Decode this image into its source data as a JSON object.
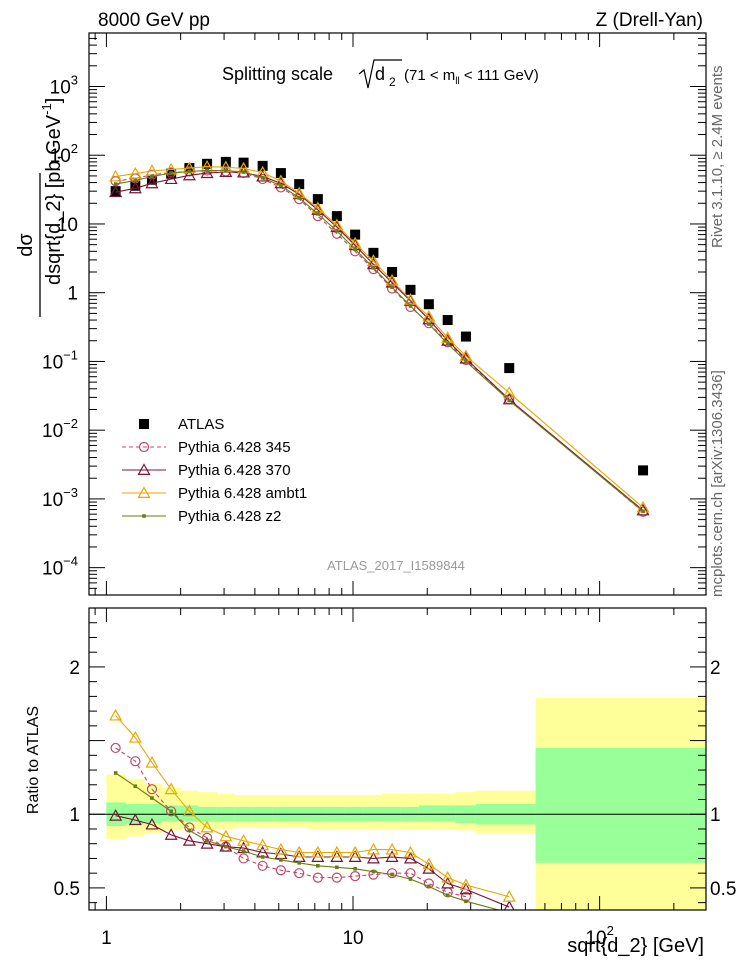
{
  "header": {
    "left": "8000 GeV pp",
    "right": "Z (Drell-Yan)"
  },
  "side_text": {
    "upper": "Rivet 3.1.10, ≥ 2.4M events",
    "lower": "mcplots.cern.ch [arXiv:1306.3436]"
  },
  "watermark": "ATLAS_2017_I1589844",
  "chart_data": [
    {
      "type": "scatter",
      "panel": "main",
      "title": "Splitting scale √d₂ (71 < mₗₗ < 111 GeV)",
      "title_main": "Splitting scale",
      "title_var": "d",
      "title_var_sub": "2",
      "title_range_pre": "(71 < m",
      "title_range_sub": "ll",
      "title_range_post": " < 111 GeV)",
      "ylabel": "dσ / dsqrt{d_2} [pb,GeV⁻¹]",
      "ylabel_num": "dσ",
      "ylabel_den": "dsqrt{d_2} [pb,GeV",
      "ylabel_exp": "-1",
      "ylabel_close": "]",
      "xlabel": "sqrt{d_2} [GeV]",
      "xscale": "log",
      "yscale": "log",
      "xlim": [
        0.85,
        270
      ],
      "ylim": [
        4e-05,
        6000
      ],
      "x_ticks": [
        {
          "value": 1,
          "label": "1"
        },
        {
          "value": 10,
          "label": "10"
        },
        {
          "value": 100,
          "label": "10",
          "exp": "2"
        }
      ],
      "y_ticks": [
        {
          "value": 0.0001,
          "base": "10",
          "exp": "−4"
        },
        {
          "value": 0.001,
          "base": "10",
          "exp": "−3"
        },
        {
          "value": 0.01,
          "base": "10",
          "exp": "−2"
        },
        {
          "value": 0.1,
          "base": "10",
          "exp": "−1"
        },
        {
          "value": 1,
          "base": "1",
          "exp": ""
        },
        {
          "value": 10,
          "base": "10",
          "exp": ""
        },
        {
          "value": 100,
          "base": "10",
          "exp": "2"
        },
        {
          "value": 1000,
          "base": "10",
          "exp": "3"
        }
      ],
      "legend_position": "lower-left",
      "series": [
        {
          "name": "ATLAS",
          "style": "data",
          "color": "#000000",
          "x": [
            1.09,
            1.31,
            1.53,
            1.83,
            2.17,
            2.56,
            3.05,
            3.6,
            4.3,
            5.1,
            6.05,
            7.2,
            8.6,
            10.2,
            12.1,
            14.4,
            17.1,
            20.3,
            24.2,
            28.7,
            43,
            150
          ],
          "y": [
            30,
            36,
            44,
            54,
            65,
            75,
            80,
            78,
            70,
            55,
            38,
            23,
            13,
            7,
            3.8,
            2.0,
            1.1,
            0.68,
            0.4,
            0.23,
            0.08,
            0.0026
          ]
        },
        {
          "name": "Pythia 6.428 345",
          "style": "dashed-circle",
          "color": "#c0486a",
          "x": [
            1.09,
            1.31,
            1.53,
            1.83,
            2.17,
            2.56,
            3.05,
            3.6,
            4.3,
            5.1,
            6.05,
            7.2,
            8.6,
            10.2,
            12.1,
            14.4,
            17.1,
            20.3,
            24.2,
            28.7,
            43,
            150
          ],
          "y": [
            42,
            46,
            52,
            56,
            58,
            60,
            58,
            55,
            45,
            34,
            23,
            13,
            7.2,
            4.0,
            2.2,
            1.15,
            0.62,
            0.36,
            0.19,
            0.105,
            0.028,
            0.00065
          ]
        },
        {
          "name": "Pythia 6.428 370",
          "style": "solid-triangle",
          "color": "#7a1436",
          "x": [
            1.09,
            1.31,
            1.53,
            1.83,
            2.17,
            2.56,
            3.05,
            3.6,
            4.3,
            5.1,
            6.05,
            7.2,
            8.6,
            10.2,
            12.1,
            14.4,
            17.1,
            20.3,
            24.2,
            28.7,
            43,
            150
          ],
          "y": [
            29,
            33,
            39,
            45,
            51,
            55,
            57,
            56,
            49,
            39,
            27,
            16,
            9,
            4.9,
            2.6,
            1.4,
            0.76,
            0.41,
            0.2,
            0.11,
            0.028,
            0.00068
          ]
        },
        {
          "name": "Pythia 6.428 ambt1",
          "style": "solid-triangle",
          "color": "#e8a800",
          "x": [
            1.09,
            1.31,
            1.53,
            1.83,
            2.17,
            2.56,
            3.05,
            3.6,
            4.3,
            5.1,
            6.05,
            7.2,
            8.6,
            10.2,
            12.1,
            14.4,
            17.1,
            20.3,
            24.2,
            28.7,
            43,
            150
          ],
          "y": [
            49,
            54,
            59,
            62,
            65,
            68,
            67,
            64,
            56,
            42,
            28,
            17,
            9.6,
            5.2,
            2.9,
            1.5,
            0.79,
            0.45,
            0.22,
            0.12,
            0.035,
            0.00075
          ]
        },
        {
          "name": "Pythia 6.428 z2",
          "style": "solid-dot",
          "color": "#6b7c10",
          "x": [
            1.09,
            1.31,
            1.53,
            1.83,
            2.17,
            2.56,
            3.05,
            3.6,
            4.3,
            5.1,
            6.05,
            7.2,
            8.6,
            10.2,
            12.1,
            14.4,
            17.1,
            20.3,
            24.2,
            28.7,
            43,
            150
          ],
          "y": [
            38,
            43,
            49,
            55,
            58,
            60,
            60,
            57,
            47,
            36,
            24,
            14,
            7.9,
            4.3,
            2.3,
            1.2,
            0.64,
            0.35,
            0.18,
            0.1,
            0.027,
            0.00066
          ]
        }
      ]
    },
    {
      "type": "line",
      "panel": "ratio",
      "ylabel": "Ratio to ATLAS",
      "xlabel": "sqrt{d_2} [GeV]",
      "xscale": "log",
      "xlim": [
        0.85,
        270
      ],
      "ylim": [
        0.35,
        2.4
      ],
      "y_ticks": [
        {
          "value": 0.5,
          "label": "0.5"
        },
        {
          "value": 1,
          "label": "1"
        },
        {
          "value": 2,
          "label": "2"
        }
      ],
      "bands": {
        "edges": [
          1.0,
          1.2,
          1.42,
          1.67,
          2.0,
          2.35,
          2.8,
          3.3,
          3.9,
          4.7,
          5.5,
          6.6,
          7.8,
          9.3,
          11,
          13.1,
          15.6,
          18.5,
          22,
          26,
          31.5,
          55,
          270
        ],
        "outer_lo": [
          0.83,
          0.85,
          0.87,
          0.89,
          0.9,
          0.9,
          0.9,
          0.91,
          0.91,
          0.91,
          0.91,
          0.9,
          0.9,
          0.9,
          0.9,
          0.9,
          0.9,
          0.9,
          0.9,
          0.89,
          0.87,
          0.35
        ],
        "outer_hi": [
          1.27,
          1.24,
          1.21,
          1.18,
          1.16,
          1.15,
          1.14,
          1.13,
          1.13,
          1.13,
          1.13,
          1.13,
          1.13,
          1.13,
          1.13,
          1.14,
          1.14,
          1.14,
          1.14,
          1.15,
          1.16,
          1.79
        ],
        "inner_lo": [
          0.92,
          0.93,
          0.94,
          0.95,
          0.95,
          0.95,
          0.95,
          0.95,
          0.95,
          0.95,
          0.95,
          0.95,
          0.95,
          0.95,
          0.95,
          0.95,
          0.95,
          0.95,
          0.95,
          0.94,
          0.93,
          0.67
        ],
        "inner_hi": [
          1.08,
          1.07,
          1.07,
          1.06,
          1.06,
          1.05,
          1.05,
          1.05,
          1.05,
          1.05,
          1.05,
          1.05,
          1.05,
          1.05,
          1.05,
          1.05,
          1.05,
          1.06,
          1.06,
          1.06,
          1.07,
          1.45
        ],
        "outer_color": "#ffff99",
        "inner_color": "#99ff99"
      },
      "series": [
        {
          "name": "Pythia 6.428 345",
          "style": "dashed-circle",
          "color": "#c0486a",
          "x": [
            1.09,
            1.31,
            1.53,
            1.83,
            2.17,
            2.56,
            3.05,
            3.6,
            4.3,
            5.1,
            6.05,
            7.2,
            8.6,
            10.2,
            12.1,
            14.4,
            17.1,
            20.3,
            24.2,
            28.7
          ],
          "y": [
            1.45,
            1.36,
            1.17,
            1.02,
            0.91,
            0.84,
            0.78,
            0.7,
            0.65,
            0.62,
            0.6,
            0.57,
            0.57,
            0.58,
            0.59,
            0.6,
            0.6,
            0.53,
            0.47,
            0.44
          ]
        },
        {
          "name": "Pythia 6.428 370",
          "style": "solid-triangle",
          "color": "#7a1436",
          "x": [
            1.09,
            1.31,
            1.53,
            1.83,
            2.17,
            2.56,
            3.05,
            3.6,
            4.3,
            5.1,
            6.05,
            7.2,
            8.6,
            10.2,
            12.1,
            14.4,
            17.1,
            20.3,
            24.2,
            28.7,
            43
          ],
          "y": [
            0.99,
            0.96,
            0.93,
            0.86,
            0.82,
            0.8,
            0.78,
            0.77,
            0.74,
            0.73,
            0.71,
            0.71,
            0.71,
            0.71,
            0.7,
            0.71,
            0.7,
            0.63,
            0.53,
            0.49,
            0.37
          ]
        },
        {
          "name": "Pythia 6.428 ambt1",
          "style": "solid-triangle",
          "color": "#e8a800",
          "x": [
            1.09,
            1.31,
            1.53,
            1.83,
            2.17,
            2.56,
            3.05,
            3.6,
            4.3,
            5.1,
            6.05,
            7.2,
            8.6,
            10.2,
            12.1,
            14.4,
            17.1,
            20.3,
            24.2,
            28.7,
            43
          ],
          "y": [
            1.67,
            1.52,
            1.35,
            1.17,
            1.02,
            0.91,
            0.85,
            0.82,
            0.79,
            0.76,
            0.74,
            0.74,
            0.74,
            0.74,
            0.76,
            0.76,
            0.74,
            0.66,
            0.57,
            0.52,
            0.44
          ]
        },
        {
          "name": "Pythia 6.428 z2",
          "style": "solid-dot",
          "color": "#6b7c10",
          "x": [
            1.09,
            1.31,
            1.53,
            1.83,
            2.17,
            2.56,
            3.05,
            3.6,
            4.3,
            5.1,
            6.05,
            7.2,
            8.6,
            10.2,
            12.1,
            14.4,
            17.1,
            20.3,
            24.2,
            28.7,
            43
          ],
          "y": [
            1.28,
            1.19,
            1.11,
            1.02,
            0.89,
            0.82,
            0.78,
            0.75,
            0.71,
            0.69,
            0.67,
            0.65,
            0.64,
            0.63,
            0.61,
            0.59,
            0.56,
            0.51,
            0.45,
            0.41,
            0.33
          ]
        }
      ]
    }
  ]
}
